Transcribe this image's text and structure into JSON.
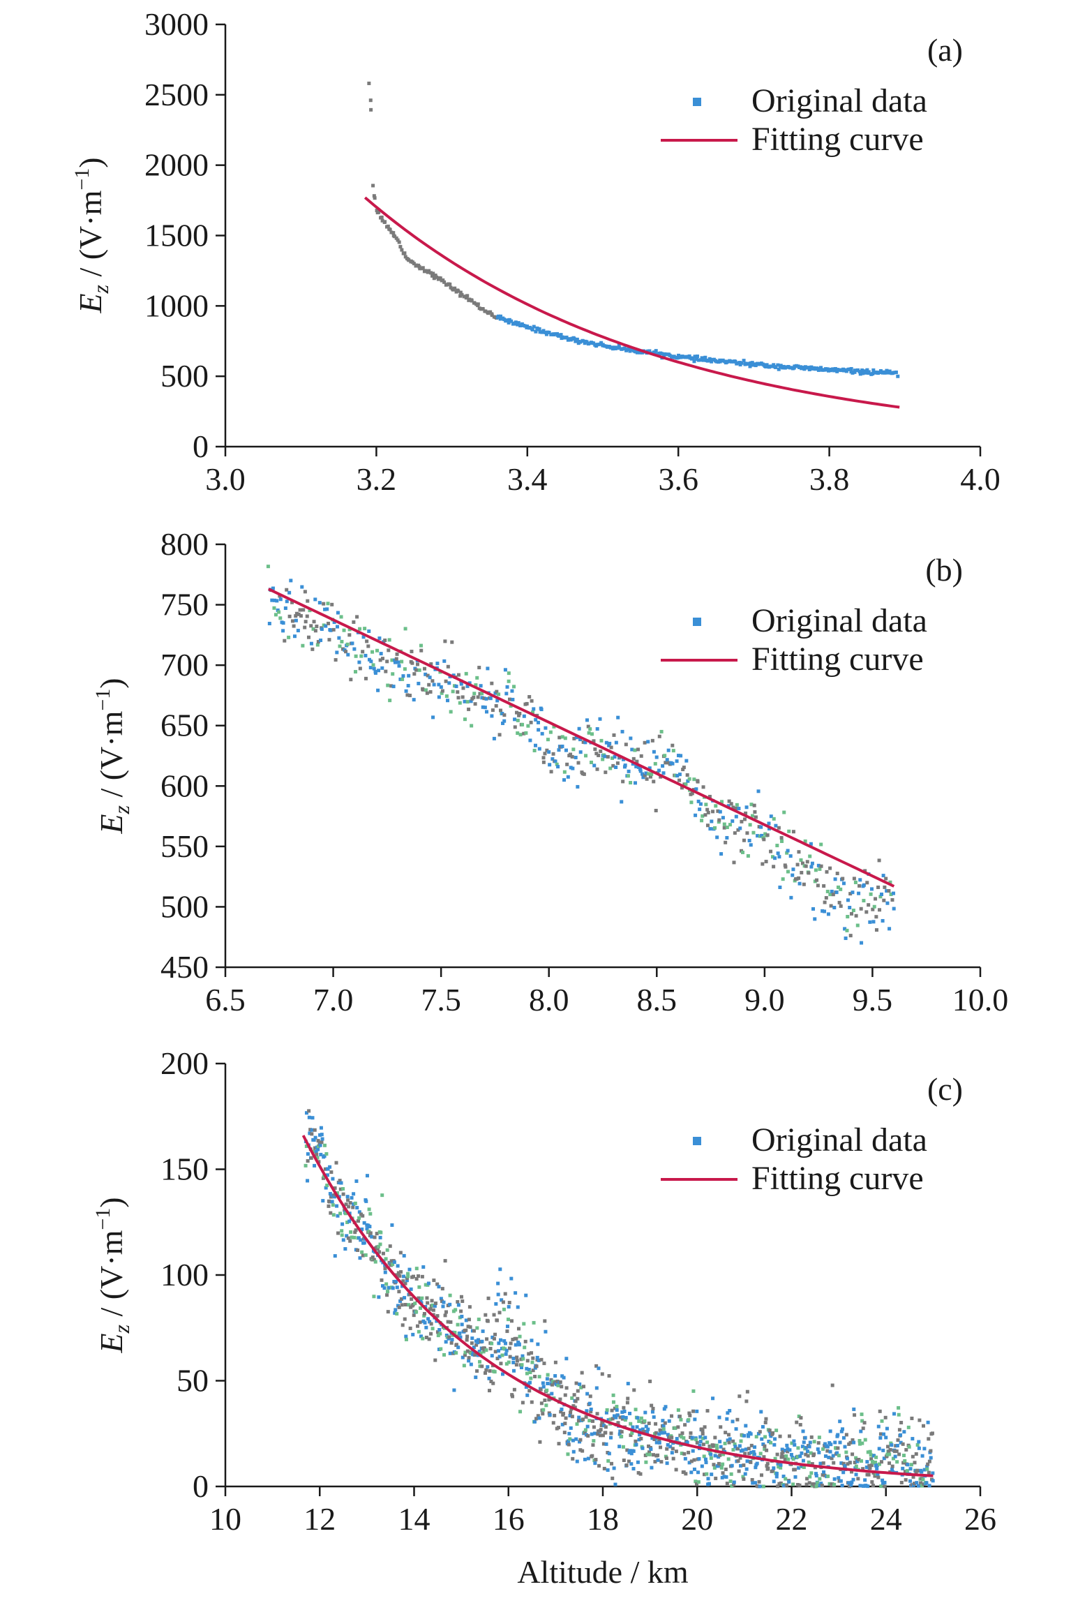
{
  "figure": {
    "xlabel": "Altitude / km",
    "ylabel_parts": [
      "E",
      "z",
      " / (V·m",
      "−1",
      ")"
    ]
  },
  "colors": {
    "data_blue": "#3a8fd6",
    "data_gray": "#7a7a7a",
    "data_green": "#6cbf8a",
    "fit": "#c8194b",
    "axis": "#1a1a1a"
  },
  "chart_data": [
    {
      "type": "scatter",
      "panel_label": "(a)",
      "xlim": [
        3.0,
        4.0
      ],
      "ylim": [
        0,
        3000
      ],
      "xticks": [
        3.0,
        3.2,
        3.4,
        3.6,
        3.8,
        4.0
      ],
      "xtick_labels": [
        "3.0",
        "3.2",
        "3.4",
        "3.6",
        "3.8",
        "4.0"
      ],
      "yticks": [
        0,
        500,
        1000,
        1500,
        2000,
        2500,
        3000
      ],
      "ytick_labels": [
        "0",
        "500",
        "1000",
        "1500",
        "2000",
        "2500",
        "3000"
      ],
      "legend": {
        "position": "top-right",
        "entries": [
          "Original data",
          "Fitting curve"
        ]
      },
      "series": [
        {
          "kind": "scatter",
          "x": [
            3.19,
            3.192,
            3.195,
            3.2,
            3.21,
            3.22,
            3.23,
            3.24,
            3.25,
            3.26,
            3.27,
            3.28,
            3.29,
            3.3,
            3.31,
            3.32,
            3.33,
            3.34,
            3.36,
            3.38,
            3.4,
            3.42,
            3.44,
            3.46,
            3.48,
            3.5,
            3.52,
            3.54,
            3.56,
            3.58,
            3.6,
            3.62,
            3.64,
            3.66,
            3.68,
            3.7,
            3.72,
            3.74,
            3.76,
            3.78,
            3.8,
            3.82,
            3.84,
            3.86,
            3.88,
            3.89
          ],
          "y": [
            2590,
            2580,
            1880,
            1680,
            1600,
            1530,
            1450,
            1340,
            1300,
            1270,
            1240,
            1200,
            1170,
            1130,
            1090,
            1060,
            1020,
            980,
            920,
            880,
            850,
            820,
            790,
            760,
            740,
            720,
            700,
            685,
            670,
            655,
            640,
            625,
            615,
            605,
            595,
            585,
            575,
            568,
            560,
            553,
            546,
            540,
            534,
            528,
            522,
            518
          ]
        },
        {
          "kind": "fit",
          "x": [
            3.185,
            3.893
          ],
          "form": "exponential",
          "y_start": 1770,
          "y_end": 280
        }
      ]
    },
    {
      "type": "scatter",
      "panel_label": "(b)",
      "xlim": [
        6.5,
        10.0
      ],
      "ylim": [
        450,
        800
      ],
      "xticks": [
        6.5,
        7.0,
        7.5,
        8.0,
        8.5,
        9.0,
        9.5,
        10.0
      ],
      "xtick_labels": [
        "6.5",
        "7.0",
        "7.5",
        "8.0",
        "8.5",
        "9.0",
        "9.5",
        "10.0"
      ],
      "yticks": [
        450,
        500,
        550,
        600,
        650,
        700,
        750,
        800
      ],
      "ytick_labels": [
        "450",
        "500",
        "550",
        "600",
        "650",
        "700",
        "750",
        "800"
      ],
      "legend": {
        "position": "top-right",
        "entries": [
          "Original data",
          "Fitting curve"
        ]
      },
      "series": [
        {
          "kind": "scatter",
          "x": [
            6.7,
            6.8,
            6.9,
            7.0,
            7.1,
            7.2,
            7.3,
            7.4,
            7.5,
            7.6,
            7.7,
            7.8,
            7.9,
            8.0,
            8.1,
            8.2,
            8.3,
            8.4,
            8.5,
            8.6,
            8.7,
            8.8,
            8.9,
            9.0,
            9.1,
            9.2,
            9.3,
            9.4,
            9.5,
            9.6
          ],
          "y": [
            748,
            745,
            735,
            728,
            712,
            705,
            698,
            690,
            684,
            676,
            670,
            667,
            660,
            632,
            628,
            630,
            628,
            622,
            618,
            610,
            590,
            575,
            568,
            560,
            545,
            530,
            515,
            500,
            505,
            505
          ]
        },
        {
          "kind": "fit",
          "x": [
            6.7,
            9.6
          ],
          "form": "linear",
          "y_start": 763,
          "y_end": 517
        }
      ]
    },
    {
      "type": "scatter",
      "panel_label": "(c)",
      "xlim": [
        10,
        26
      ],
      "ylim": [
        0,
        200
      ],
      "xticks": [
        10,
        12,
        14,
        16,
        18,
        20,
        22,
        24,
        26
      ],
      "xtick_labels": [
        "10",
        "12",
        "14",
        "16",
        "18",
        "20",
        "22",
        "24",
        "26"
      ],
      "yticks": [
        0,
        50,
        100,
        150,
        200
      ],
      "ytick_labels": [
        "0",
        "50",
        "100",
        "150",
        "200"
      ],
      "legend": {
        "position": "top-right",
        "entries": [
          "Original data",
          "Fitting curve"
        ]
      },
      "series": [
        {
          "kind": "scatter",
          "x": [
            11.7,
            12.0,
            12.3,
            12.6,
            13.0,
            13.5,
            14.0,
            14.5,
            15.0,
            15.5,
            16.0,
            16.5,
            17.0,
            17.5,
            18.0,
            18.5,
            19.0,
            19.5,
            20.0,
            20.5,
            21.0,
            21.5,
            22.0,
            22.5,
            23.0,
            23.5,
            24.0,
            24.5,
            25.0
          ],
          "y": [
            160,
            158,
            140,
            128,
            118,
            102,
            88,
            78,
            72,
            66,
            64,
            56,
            40,
            30,
            28,
            25,
            24,
            22,
            20,
            18,
            16,
            14,
            13,
            12,
            12,
            13,
            14,
            13,
            12
          ]
        },
        {
          "kind": "fit",
          "x": [
            11.65,
            25.0
          ],
          "form": "exponential",
          "y_start": 166,
          "y_end": 5
        }
      ]
    }
  ]
}
